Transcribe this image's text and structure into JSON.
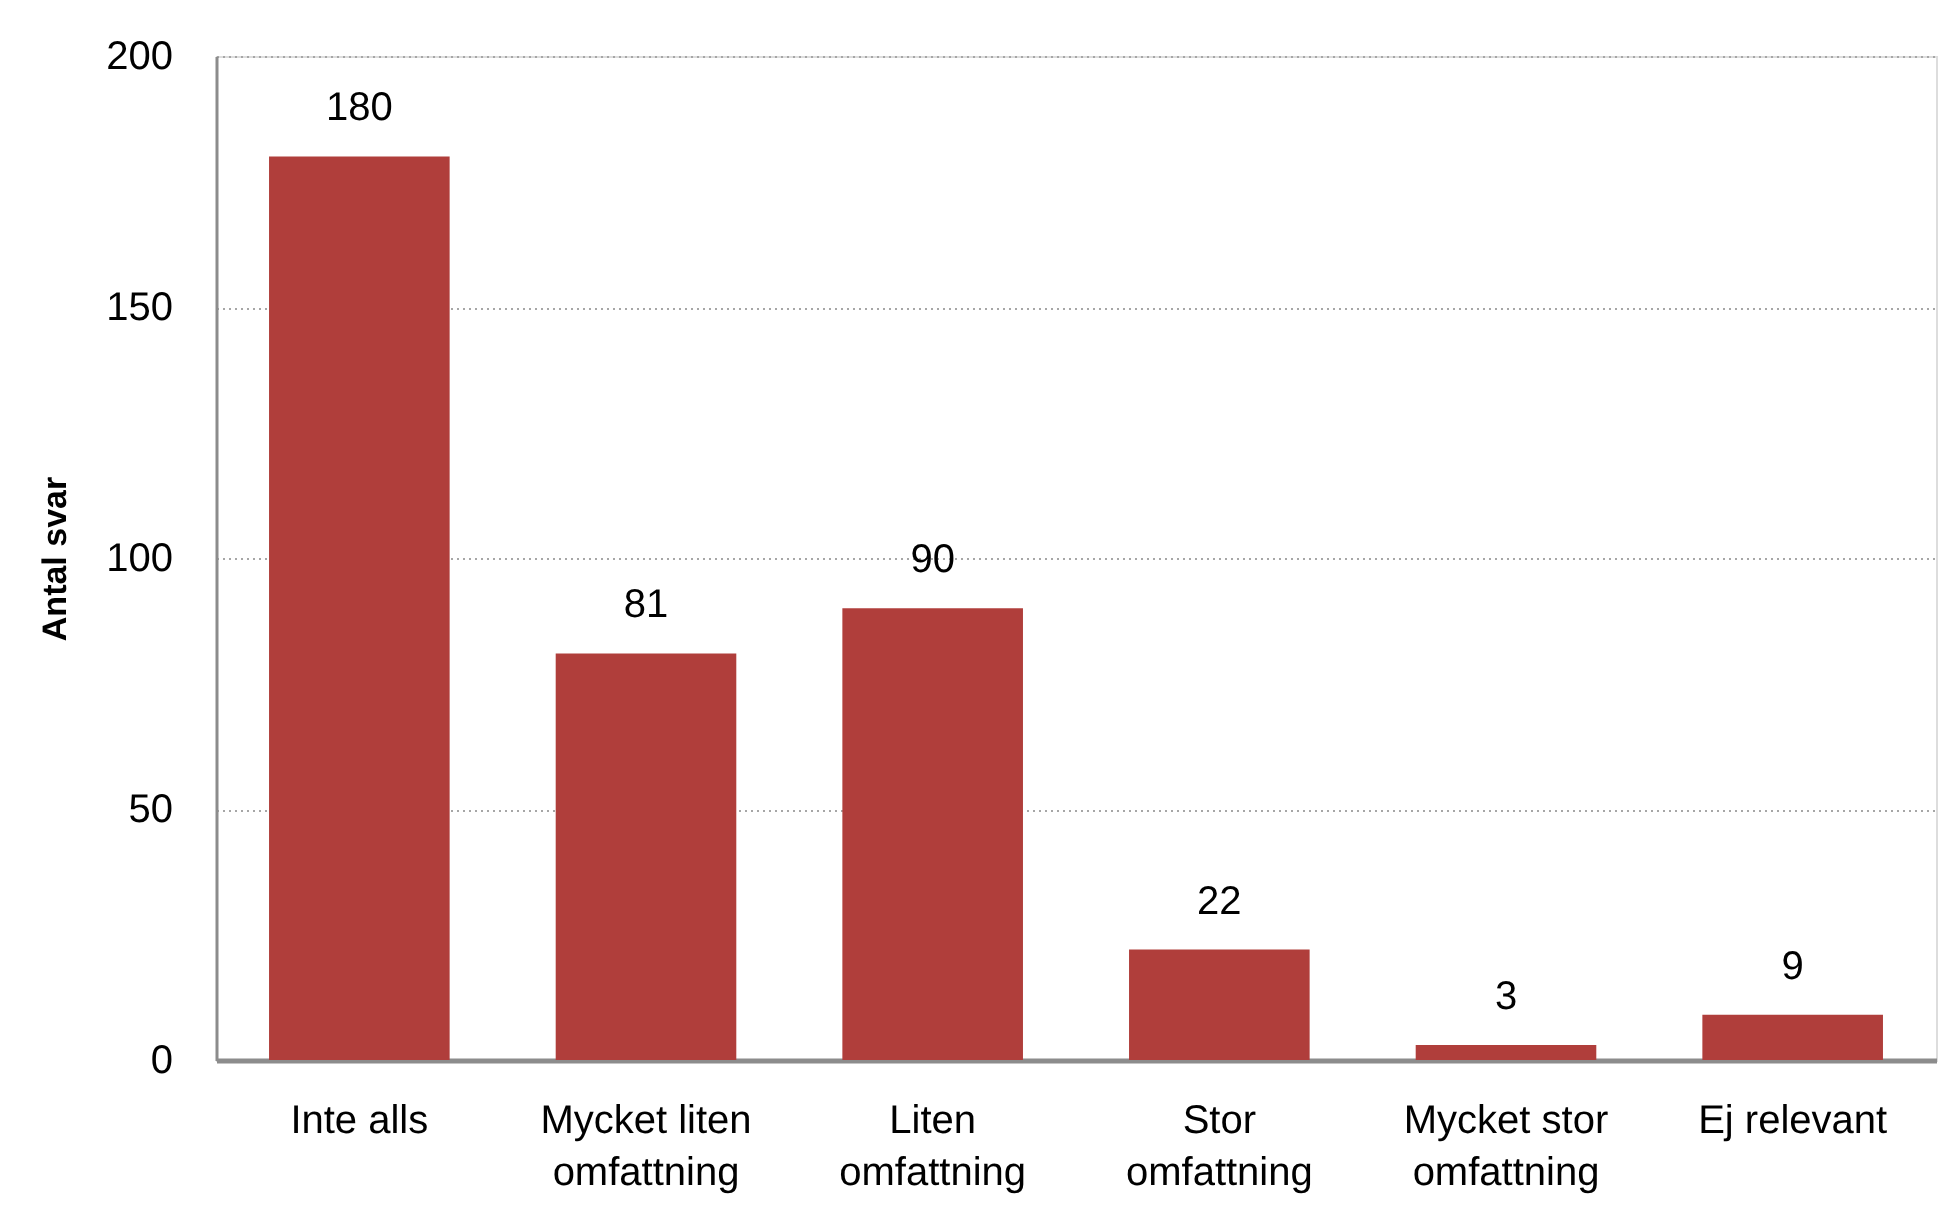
{
  "chart_data": {
    "type": "bar",
    "ylabel": "Antal svar",
    "categories": [
      "Inte alls",
      "Mycket liten\nomfattning",
      "Liten\nomfattning",
      "Stor\nomfattning",
      "Mycket stor\nomfattning",
      "Ej relevant"
    ],
    "values": [
      180,
      81,
      90,
      22,
      3,
      9
    ],
    "color": "#b03e3b",
    "ylim": [
      0,
      200
    ],
    "yticks": [
      0,
      50,
      100,
      150,
      200
    ],
    "grid": "y",
    "data_labels": true
  }
}
